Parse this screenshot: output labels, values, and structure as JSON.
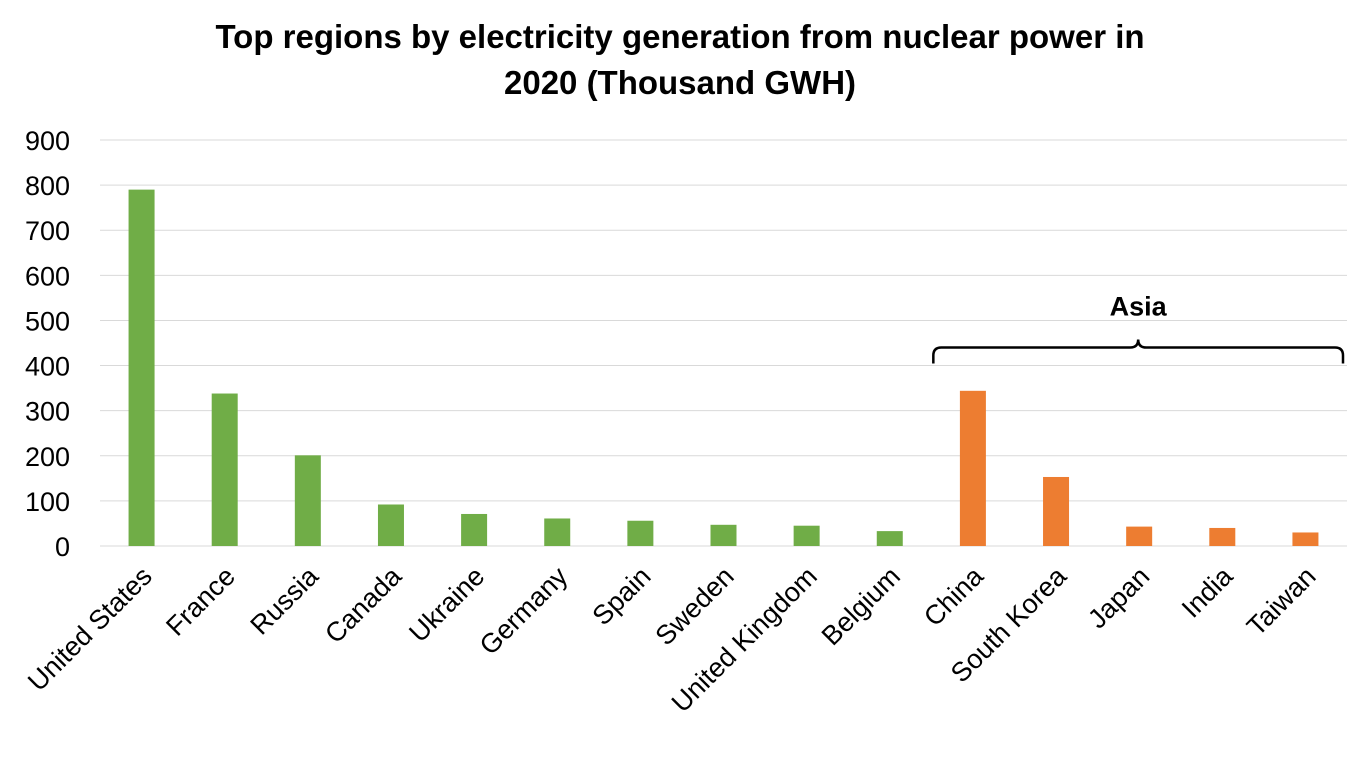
{
  "chart_data": {
    "type": "bar",
    "title": "Top regions by electricity generation from nuclear power in 2020 (Thousand GWH)",
    "title_lines": [
      "Top regions by electricity generation from nuclear power in",
      "2020 (Thousand GWH)"
    ],
    "xlabel": "",
    "ylabel": "",
    "ylim": [
      0,
      900
    ],
    "yticks": [
      0,
      100,
      200,
      300,
      400,
      500,
      600,
      700,
      800,
      900
    ],
    "grid": true,
    "legend": "none",
    "categories": [
      "United States",
      "France",
      "Russia",
      "Canada",
      "Ukraine",
      "Germany",
      "Spain",
      "Sweden",
      "United Kingdom",
      "Belgium",
      "China",
      "South Korea",
      "Japan",
      "India",
      "Taiwan"
    ],
    "values": [
      790,
      338,
      201,
      92,
      71,
      61,
      56,
      47,
      45,
      33,
      344,
      153,
      43,
      40,
      30
    ],
    "bar_groups": [
      "other",
      "other",
      "other",
      "other",
      "other",
      "other",
      "other",
      "other",
      "other",
      "other",
      "Asia",
      "Asia",
      "Asia",
      "Asia",
      "Asia"
    ],
    "colors": {
      "other": "#70ad47",
      "Asia": "#ed7d31"
    },
    "annotations": [
      {
        "text": "Asia",
        "type": "bracket",
        "from_category": "China",
        "to_category": "Taiwan",
        "y_value": 400
      }
    ]
  }
}
